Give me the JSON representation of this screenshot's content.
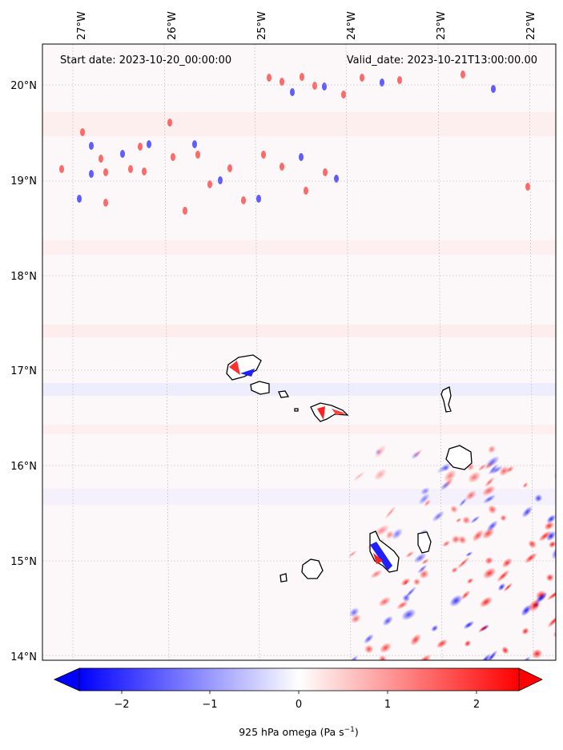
{
  "map": {
    "start_label": "Start date: 2023-10-20_00:00:00",
    "valid_label": "Valid_date: 2023-10-21T13:00:00.00",
    "lon_ticks": [
      "27°W",
      "26°W",
      "25°W",
      "24°W",
      "23°W",
      "22°W"
    ],
    "lat_ticks": [
      "20°N",
      "19°N",
      "18°N",
      "17°N",
      "16°N",
      "15°N",
      "14°N"
    ],
    "colorbar": {
      "ticks": [
        "−2",
        "−1",
        "0",
        "1",
        "2"
      ],
      "label": "925 hPa omega (Pa s",
      "label_sup": "−1",
      "label_close": ")",
      "range": [
        -2.6,
        2.6
      ],
      "extend": "both",
      "colormap": "bwr",
      "colors": {
        "negative": "#0000ff",
        "zero": "#ffffff",
        "positive": "#ff0000"
      }
    },
    "grid": "dotted",
    "features": [
      "Cape Verde island coastlines"
    ]
  }
}
